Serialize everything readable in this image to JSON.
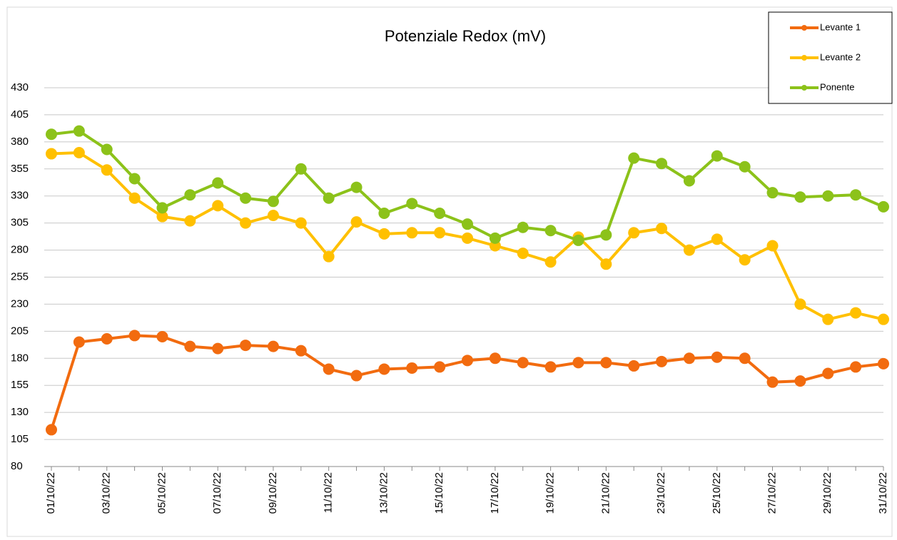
{
  "chart_data": {
    "type": "line",
    "title": "Potenziale Redox  (mV)",
    "categories": [
      "01/10/22",
      null,
      "03/10/22",
      null,
      "05/10/22",
      null,
      "07/10/22",
      null,
      "09/10/22",
      null,
      "11/10/22",
      null,
      "13/10/22",
      null,
      "15/10/22",
      null,
      "17/10/22",
      null,
      "19/10/22",
      null,
      "21/10/22",
      null,
      "23/10/22",
      null,
      "25/10/22",
      null,
      "27/10/22",
      null,
      "29/10/22",
      null,
      "31/10/22"
    ],
    "series": [
      {
        "name": "Levante 1",
        "color": "#f26b0f",
        "values": [
          114,
          195,
          198,
          201,
          200,
          191,
          189,
          192,
          191,
          187,
          170,
          164,
          170,
          171,
          172,
          178,
          180,
          176,
          172,
          176,
          176,
          173,
          177,
          180,
          181,
          180,
          158,
          159,
          166,
          172,
          175
        ]
      },
      {
        "name": "Levante 2",
        "color": "#ffc000",
        "values": [
          369,
          370,
          354,
          328,
          311,
          307,
          321,
          305,
          312,
          305,
          274,
          306,
          295,
          296,
          296,
          291,
          284,
          277,
          269,
          292,
          267,
          296,
          300,
          280,
          290,
          271,
          284,
          230,
          216,
          222,
          216
        ]
      },
      {
        "name": "Ponente",
        "color": "#8cc21a",
        "values": [
          387,
          390,
          373,
          346,
          319,
          331,
          342,
          328,
          325,
          355,
          328,
          338,
          314,
          323,
          314,
          304,
          291,
          301,
          298,
          289,
          294,
          365,
          360,
          344,
          367,
          357,
          333,
          329,
          330,
          331,
          320
        ]
      }
    ],
    "ylim": [
      80,
      430
    ],
    "yticks": [
      80,
      105,
      130,
      155,
      180,
      205,
      230,
      255,
      280,
      305,
      330,
      355,
      380,
      405,
      430
    ],
    "grid": true,
    "legend": "top-right"
  }
}
